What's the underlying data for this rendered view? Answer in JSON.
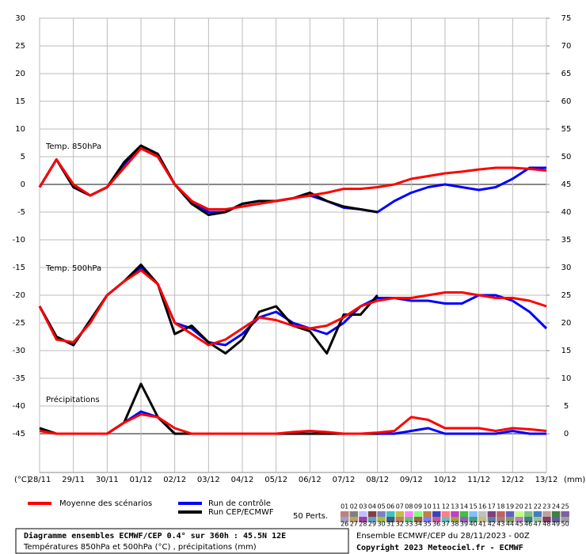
{
  "chart_data": {
    "type": "line",
    "categories": [
      "28/11",
      null,
      "29/11",
      null,
      "30/11",
      null,
      "01/12",
      null,
      "02/12",
      null,
      "03/12",
      null,
      "04/12",
      null,
      "05/12",
      null,
      "06/12",
      null,
      "07/12",
      null,
      "08/12",
      null,
      "09/12",
      null,
      "10/12",
      null,
      "11/12",
      null,
      "12/12",
      null,
      "13/12"
    ],
    "ylim": [
      -52,
      30
    ],
    "yticks": [
      -45,
      -40,
      -35,
      -30,
      -25,
      -20,
      -15,
      -10,
      -5,
      0,
      5,
      10,
      15,
      20,
      25,
      30
    ],
    "y2lim": [
      -7,
      75
    ],
    "y2ticks": [
      0,
      5,
      10,
      15,
      20,
      25,
      30,
      35,
      40,
      45,
      50,
      55,
      60,
      65,
      70,
      75
    ],
    "ylabel": "(°C)",
    "y2label": "(mm)",
    "grid": true,
    "annotations": [
      "Temp. 850hPa",
      "Temp. 500hPa",
      "Précipitations"
    ],
    "series": [
      {
        "name": "Moyenne des scénarios",
        "color": "#ff0000",
        "values": [
          -0.5,
          4.5,
          0,
          -2,
          -0.5,
          3,
          6.5,
          5,
          0,
          -3,
          -4.5,
          -4.5,
          -4,
          -3.5,
          -3,
          -2.5,
          -2,
          -1.5,
          -0.8,
          -0.8,
          -0.5,
          0,
          1,
          1.5,
          2,
          2.3,
          2.7,
          3,
          3,
          2.8,
          2.5
        ]
      },
      {
        "name": "Run de contrôle",
        "color": "#0000ff",
        "values": [
          -0.5,
          4.5,
          -0.5,
          -2,
          -0.5,
          3.5,
          6.5,
          5,
          0,
          -3,
          -5,
          -5,
          -3.5,
          -3,
          -3,
          -2.5,
          -2,
          -3,
          -4.2,
          -4.5,
          -5,
          -3,
          -1.5,
          -0.5,
          0,
          -0.5,
          -1,
          -0.5,
          1,
          3,
          3
        ]
      },
      {
        "name": "Run CEP/ECMWF",
        "color": "#000000",
        "values": [
          -0.5,
          4.5,
          -0.5,
          -2,
          -0.5,
          4,
          7,
          5.5,
          0,
          -3.5,
          -5.5,
          -5,
          -3.5,
          -3,
          -3,
          -2.5,
          -1.5,
          -3,
          -4,
          -4.5,
          -5,
          null,
          null,
          null,
          null,
          null,
          null,
          null,
          null,
          null,
          null
        ]
      },
      {
        "name": "Moyenne des scénarios",
        "color": "#ff0000",
        "values": [
          -22,
          -28,
          -28.5,
          -25,
          -20,
          -17.5,
          -15.5,
          -18,
          -25,
          -27,
          -29,
          -28,
          -26,
          -24,
          -24.5,
          -25.5,
          -26,
          -25.5,
          -24,
          -22,
          -21,
          -20.5,
          -20.5,
          -20,
          -19.5,
          -19.5,
          -20,
          -20.5,
          -20.5,
          -21,
          -22
        ]
      },
      {
        "name": "Run de contrôle",
        "color": "#0000ff",
        "values": [
          -22,
          -27.5,
          -29,
          -24.5,
          -20,
          -17.5,
          -15,
          -18,
          -25,
          -26,
          -28.5,
          -29,
          -27,
          -24,
          -23,
          -25,
          -26,
          -27,
          -25,
          -22,
          -20.5,
          -20.5,
          -21,
          -21,
          -21.5,
          -21.5,
          -20,
          -20,
          -21,
          -23,
          -26
        ]
      },
      {
        "name": "Run CEP/ECMWF",
        "color": "#000000",
        "values": [
          -22,
          -27.5,
          -29,
          -24.5,
          -20,
          -17.5,
          -14.5,
          -18,
          -27,
          -25.5,
          -28.5,
          -30.5,
          -28,
          -23,
          -22,
          -25.5,
          -26.5,
          -30.5,
          -23.5,
          -23.5,
          -20,
          null,
          null,
          null,
          null,
          null,
          null,
          null,
          null,
          null,
          null
        ]
      },
      {
        "name": "Moyenne des scénarios",
        "color": "#ff0000",
        "axis": "y2",
        "values": [
          0.5,
          0,
          0,
          0,
          0,
          2,
          3.5,
          3,
          1,
          0,
          0,
          0,
          0,
          0,
          0,
          0.3,
          0.5,
          0.3,
          0,
          0,
          0.2,
          0.5,
          3,
          2.5,
          1,
          1,
          1,
          0.5,
          1,
          0.8,
          0.5
        ]
      },
      {
        "name": "Run de contrôle",
        "color": "#0000ff",
        "axis": "y2",
        "values": [
          1,
          0,
          0,
          0,
          0,
          2,
          4,
          3,
          0,
          0,
          0,
          0,
          0,
          0,
          0,
          0,
          0,
          0,
          0,
          0,
          0,
          0,
          0.5,
          1,
          0,
          0,
          0,
          0,
          0.5,
          0,
          0
        ]
      },
      {
        "name": "Run CEP/ECMWF",
        "color": "#000000",
        "axis": "y2",
        "values": [
          1,
          0,
          0,
          0,
          0,
          2,
          9,
          3,
          0,
          0,
          0,
          0,
          0,
          0,
          0,
          0,
          0,
          0,
          0,
          0,
          0,
          null,
          null,
          null,
          null,
          null,
          null,
          null,
          null,
          null,
          null
        ]
      }
    ],
    "perturbations_label": "50 Perts.",
    "perturbations": [
      "01",
      "02",
      "03",
      "04",
      "05",
      "06",
      "07",
      "08",
      "09",
      "10",
      "11",
      "12",
      "13",
      "14",
      "15",
      "16",
      "17",
      "18",
      "19",
      "20",
      "21",
      "22",
      "23",
      "24",
      "25",
      "26",
      "27",
      "28",
      "29",
      "30",
      "31",
      "32",
      "33",
      "34",
      "35",
      "36",
      "37",
      "38",
      "39",
      "40",
      "41",
      "42",
      "43",
      "44",
      "45",
      "46",
      "47",
      "48",
      "49",
      "50"
    ],
    "perturbation_colors": [
      "#c08080",
      "#808080",
      "#c0c0ff",
      "#804040",
      "#8080c0",
      "#40c0c0",
      "#c0c040",
      "#ff80ff",
      "#80ff80",
      "#c08040",
      "#4040c0",
      "#ff8080",
      "#c040c0",
      "#40c040",
      "#80c0ff",
      "#c0c0c0",
      "#804080",
      "#c06060",
      "#6060c0",
      "#c0ff80",
      "#80c080",
      "#4080c0",
      "#c0a0a0",
      "#408040",
      "#8060a0",
      "#a0a0c0",
      "#c0a060",
      "#a040a0",
      "#60a0c0",
      "#a0c040",
      "#406080",
      "#c08060",
      "#60c080",
      "#a06040",
      "#8080ff",
      "#c06090",
      "#60c0c0",
      "#a0a040",
      "#9060c0",
      "#40a080",
      "#c0c080",
      "#6080a0",
      "#a08080",
      "#80a060",
      "#c080c0",
      "#408080",
      "#a0c0a0",
      "#804060",
      "#6060a0",
      "#a0a0a0"
    ],
    "footer_title": "Diagramme ensembles ECMWF/CEP 0.4° sur 360h : 45.5N 12E",
    "footer_subtitle": "Températures 850hPa et 500hPa (°C) , précipitations (mm)",
    "run_info": "Ensemble ECMWF/CEP du 28/11/2023 - 00Z",
    "copyright": "Copyright 2023 Meteociel.fr - ECMWF"
  }
}
